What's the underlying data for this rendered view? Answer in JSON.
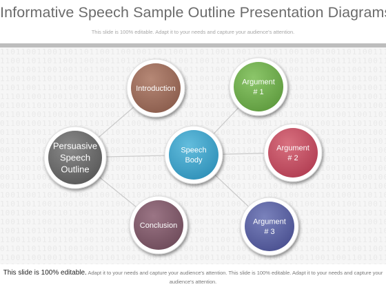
{
  "header": {
    "title": "Informative Speech Sample Outline Presentation Diagrams",
    "subtitle": "This slide is 100% editable. Adapt it to your needs and capture your audience's attention."
  },
  "background_pattern": "110110011001101101100110010011011001",
  "diagram": {
    "nodes": [
      {
        "id": "persuasive",
        "lines": [
          "Persuasive",
          "Speech",
          "Outline"
        ],
        "color": "#585858",
        "highlight": "#8a8a8a"
      },
      {
        "id": "introduction",
        "lines": [
          "Introduction"
        ],
        "color": "#8a5c4c",
        "highlight": "#b68876"
      },
      {
        "id": "speech-body",
        "lines": [
          "Speech",
          "Body"
        ],
        "color": "#2f90b8",
        "highlight": "#63bddd"
      },
      {
        "id": "argument-1",
        "lines": [
          "Argument",
          "# 1"
        ],
        "color": "#5e9a3e",
        "highlight": "#8cc66a"
      },
      {
        "id": "argument-2",
        "lines": [
          "Argument",
          "# 2"
        ],
        "color": "#b13d52",
        "highlight": "#d8707f"
      },
      {
        "id": "argument-3",
        "lines": [
          "Argument",
          "# 3"
        ],
        "color": "#4a5090",
        "highlight": "#7a82bc"
      },
      {
        "id": "conclusion",
        "lines": [
          "Conclusion"
        ],
        "color": "#6e4b5a",
        "highlight": "#9b7585"
      }
    ],
    "edges": [
      [
        "persuasive",
        "introduction"
      ],
      [
        "persuasive",
        "speech-body"
      ],
      [
        "persuasive",
        "conclusion"
      ],
      [
        "speech-body",
        "argument-1"
      ],
      [
        "speech-body",
        "argument-2"
      ],
      [
        "speech-body",
        "argument-3"
      ]
    ]
  },
  "footer": {
    "strong": "This slide is 100% editable.",
    "rest": " Adapt it to your needs and capture your audience's attention. This slide is 100% editable. Adapt it to your needs and capture your audience's attention."
  }
}
